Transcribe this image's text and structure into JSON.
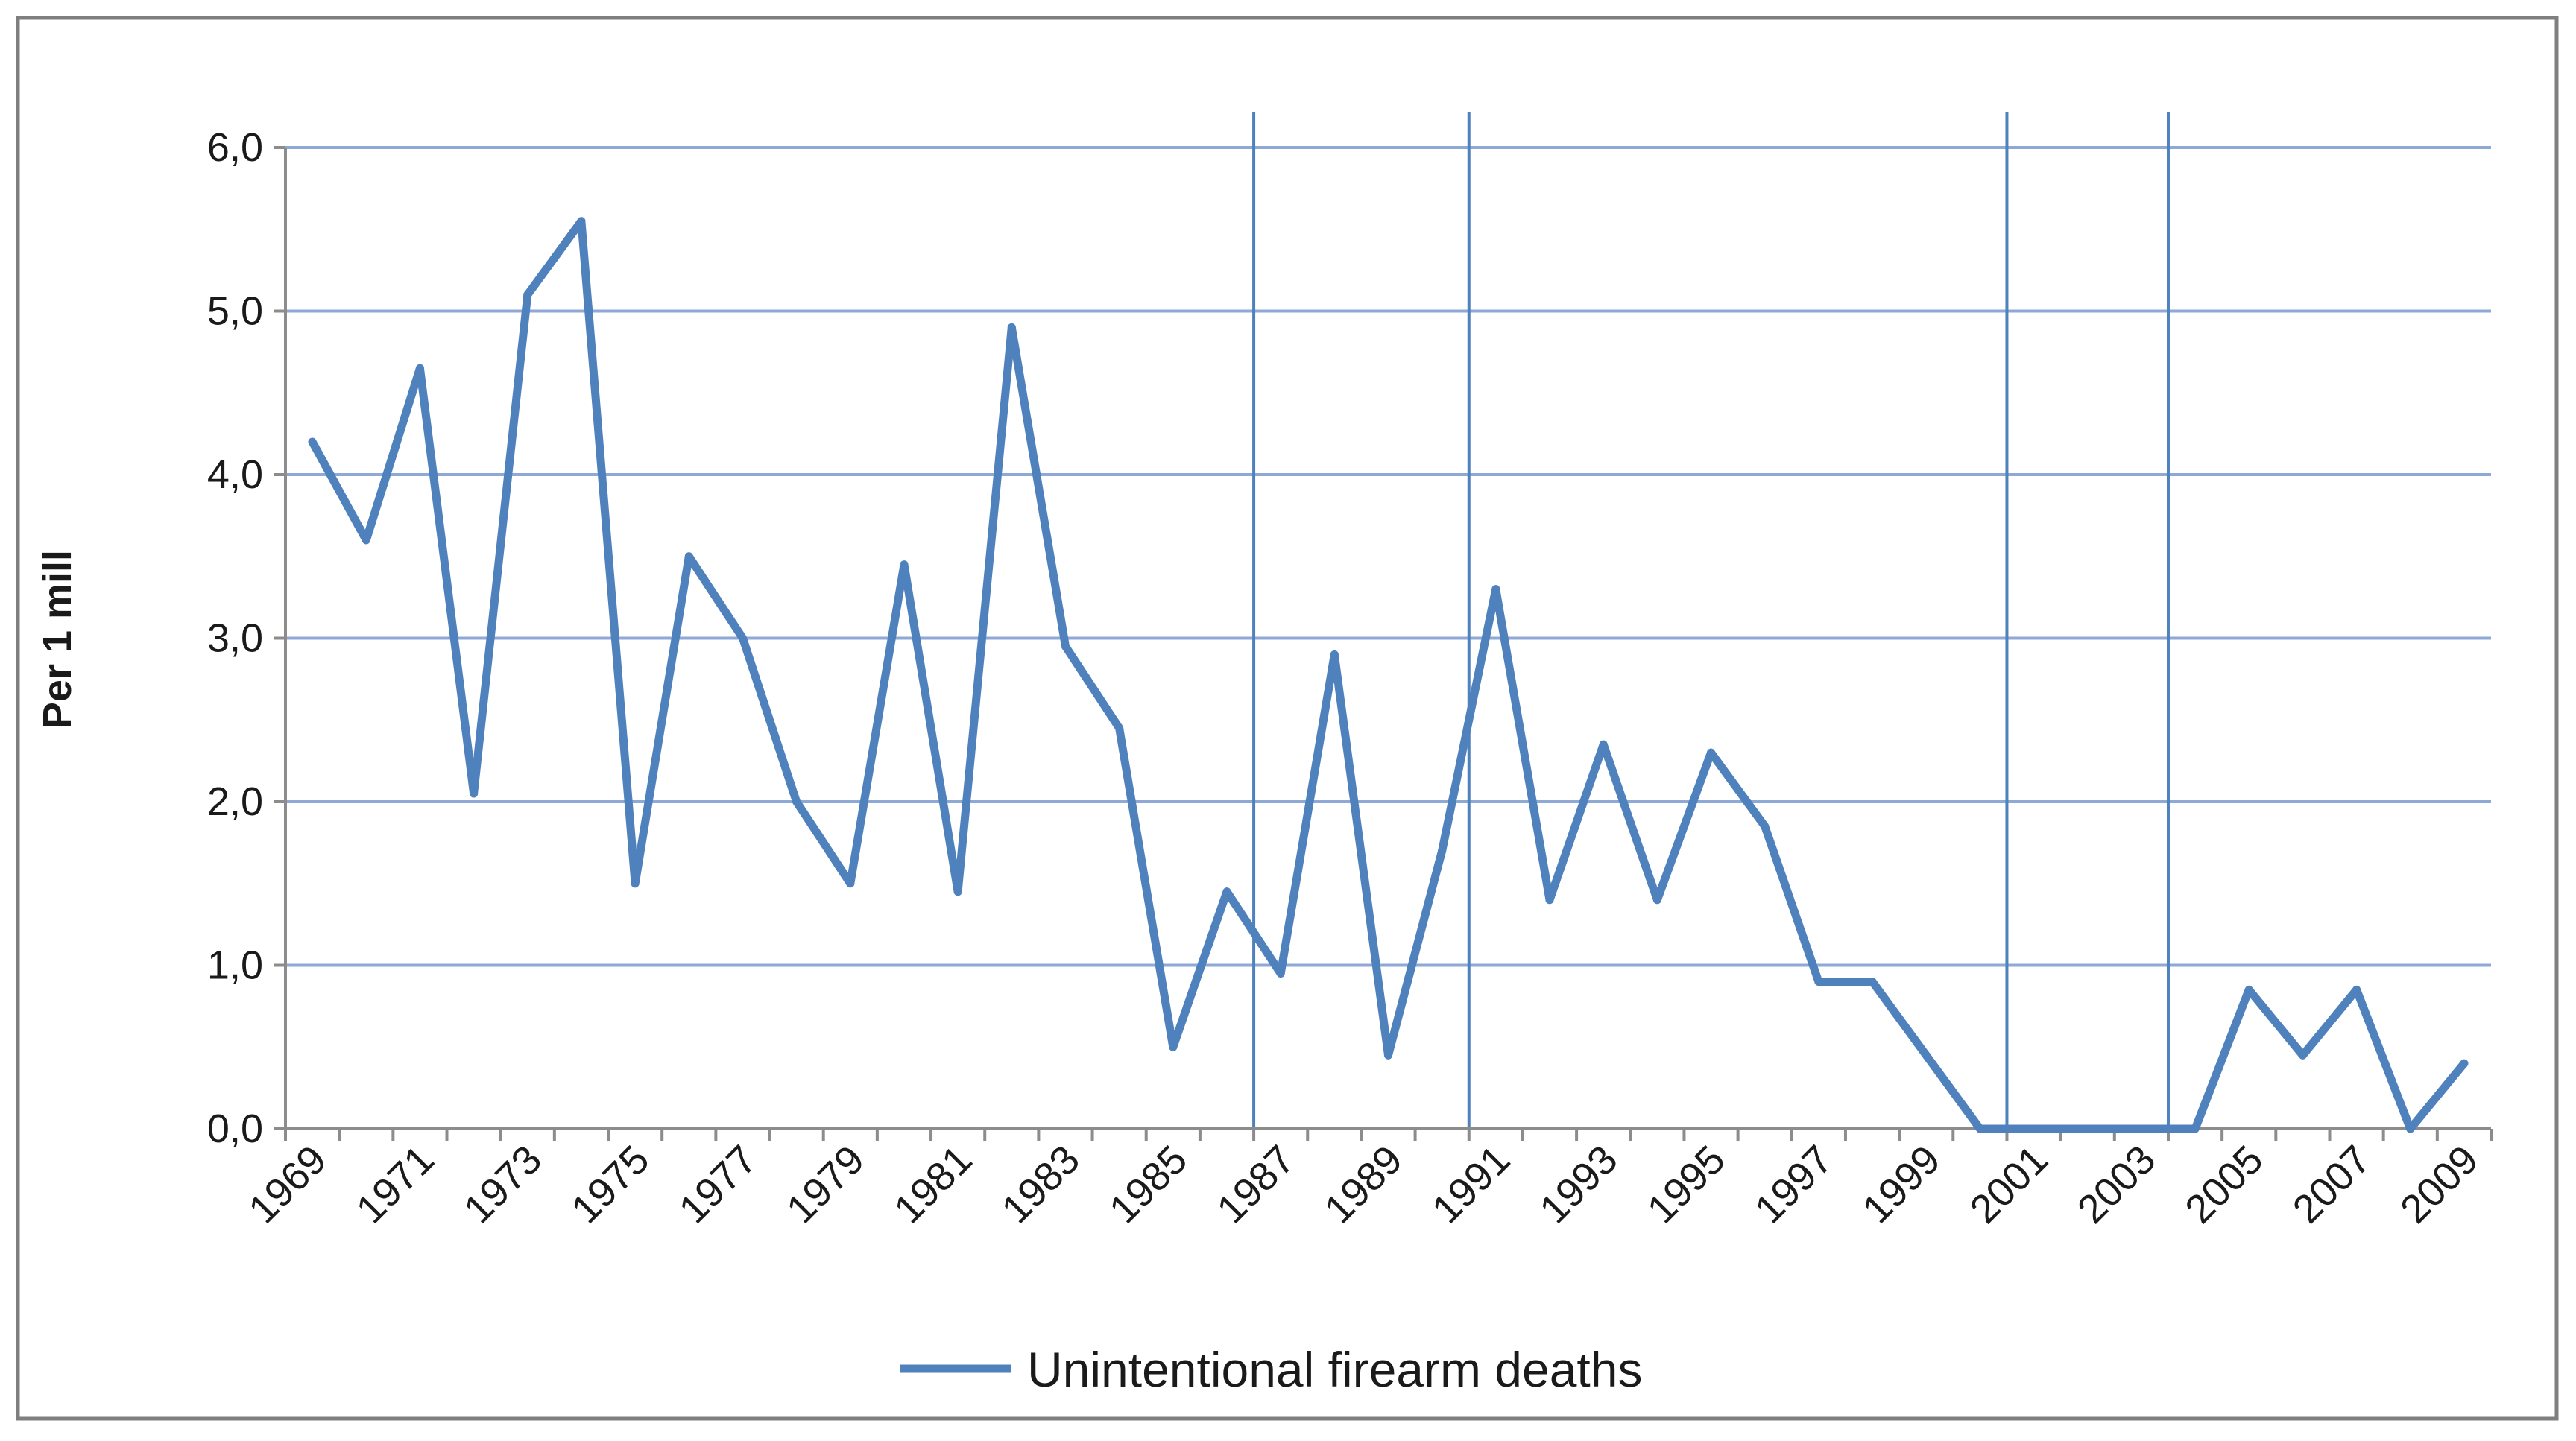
{
  "chart_data": {
    "type": "line",
    "ylabel": "Per 1 mill",
    "xlabel": "",
    "ylim": [
      0,
      6
    ],
    "ytick_labels": [
      "0,0",
      "1,0",
      "2,0",
      "3,0",
      "4,0",
      "5,0",
      "6,0"
    ],
    "ytick_values": [
      0,
      1,
      2,
      3,
      4,
      5,
      6
    ],
    "xtick_labels": [
      "1969",
      "1971",
      "1973",
      "1975",
      "1977",
      "1979",
      "1981",
      "1983",
      "1985",
      "1987",
      "1989",
      "1991",
      "1993",
      "1995",
      "1997",
      "1999",
      "2001",
      "2003",
      "2005",
      "2007",
      "2009"
    ],
    "x": [
      1969,
      1970,
      1971,
      1972,
      1973,
      1974,
      1975,
      1976,
      1977,
      1978,
      1979,
      1980,
      1981,
      1982,
      1983,
      1984,
      1985,
      1986,
      1987,
      1988,
      1989,
      1990,
      1991,
      1992,
      1993,
      1994,
      1995,
      1996,
      1997,
      1998,
      1999,
      2000,
      2001,
      2002,
      2003,
      2004,
      2005,
      2006,
      2007,
      2008,
      2009
    ],
    "series": [
      {
        "name": "Unintentional firearm deaths",
        "color": "#4f81bd",
        "values": [
          4.2,
          3.6,
          4.65,
          2.05,
          5.1,
          5.55,
          1.5,
          3.5,
          3.0,
          2.0,
          1.5,
          3.45,
          1.45,
          4.9,
          2.95,
          2.45,
          0.5,
          1.45,
          0.95,
          2.9,
          0.45,
          1.7,
          3.3,
          1.4,
          2.35,
          1.4,
          2.3,
          1.85,
          0.9,
          0.9,
          0.45,
          0.0,
          0.0,
          0.0,
          0.0,
          0.0,
          0.85,
          0.45,
          0.85,
          0.0,
          0.4
        ]
      }
    ],
    "vertical_markers": [
      1986.5,
      1990.5,
      2000.5,
      2003.5
    ],
    "grid": true,
    "gridline_color": "#8fa9d6",
    "marker_line_color": "#4f81bd",
    "legend_position": "bottom"
  }
}
